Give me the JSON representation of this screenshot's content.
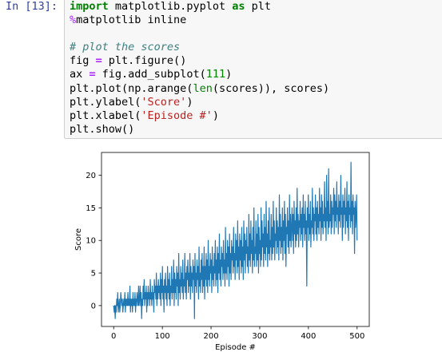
{
  "cell": {
    "prompt": "In [13]:",
    "lines": [
      [
        {
          "c": "kw",
          "t": "import"
        },
        {
          "c": "",
          "t": " matplotlib.pyplot "
        },
        {
          "c": "kw",
          "t": "as"
        },
        {
          "c": "",
          "t": " plt"
        }
      ],
      [
        {
          "c": "mg",
          "t": "%"
        },
        {
          "c": "",
          "t": "matplotlib inline"
        }
      ],
      [
        {
          "c": "",
          "t": ""
        }
      ],
      [
        {
          "c": "cm",
          "t": "# plot the scores"
        }
      ],
      [
        {
          "c": "",
          "t": "fig "
        },
        {
          "c": "op",
          "t": "="
        },
        {
          "c": "",
          "t": " plt.figure()"
        }
      ],
      [
        {
          "c": "",
          "t": "ax "
        },
        {
          "c": "op",
          "t": "="
        },
        {
          "c": "",
          "t": " fig.add_subplot("
        },
        {
          "c": "nm",
          "t": "111"
        },
        {
          "c": "",
          "t": ")"
        }
      ],
      [
        {
          "c": "",
          "t": "plt.plot(np.arange("
        },
        {
          "c": "bi",
          "t": "len"
        },
        {
          "c": "",
          "t": "(scores)), scores)"
        }
      ],
      [
        {
          "c": "",
          "t": "plt.ylabel("
        },
        {
          "c": "st",
          "t": "'Score'"
        },
        {
          "c": "",
          "t": ")"
        }
      ],
      [
        {
          "c": "",
          "t": "plt.xlabel("
        },
        {
          "c": "st",
          "t": "'Episode #'"
        },
        {
          "c": "",
          "t": ")"
        }
      ],
      [
        {
          "c": "",
          "t": "plt.show()"
        }
      ]
    ]
  },
  "chart_data": {
    "type": "line",
    "xlabel": "Episode #",
    "ylabel": "Score",
    "xlim": [
      -25,
      525
    ],
    "ylim": [
      -3.2,
      23.5
    ],
    "xticks": [
      0,
      100,
      200,
      300,
      400,
      500
    ],
    "yticks": [
      0,
      5,
      10,
      15,
      20
    ],
    "line_color": "#1f77b4",
    "series": [
      {
        "values": [
          0,
          -1,
          0,
          -2,
          0,
          -1,
          1,
          0,
          2,
          -1,
          0,
          1,
          -1,
          0,
          2,
          1,
          0,
          1,
          -1,
          0,
          1,
          0,
          2,
          -1,
          1,
          0,
          1,
          0,
          2,
          0,
          1,
          0,
          3,
          -1,
          1,
          0,
          1,
          -1,
          2,
          0,
          1,
          0,
          2,
          -1,
          1,
          0,
          2,
          1,
          0,
          3,
          0,
          1,
          3,
          0,
          2,
          -2,
          1,
          0,
          3,
          1,
          4,
          0,
          2,
          1,
          3,
          -1,
          2,
          0,
          3,
          1,
          2,
          0,
          4,
          1,
          2,
          0,
          3,
          1,
          2,
          -1,
          4,
          2,
          3,
          1,
          5,
          0,
          3,
          1,
          4,
          2,
          3,
          1,
          5,
          0,
          4,
          2,
          6,
          1,
          3,
          -1,
          4,
          2,
          5,
          1,
          3,
          0,
          6,
          2,
          4,
          1,
          5,
          0,
          3,
          2,
          6,
          1,
          4,
          2,
          7,
          0,
          5,
          2,
          4,
          1,
          6,
          3,
          5,
          0,
          8,
          2,
          4,
          1,
          6,
          3,
          5,
          2,
          7,
          1,
          4,
          3,
          8,
          2,
          5,
          1,
          6,
          4,
          7,
          2,
          5,
          3,
          8,
          1,
          6,
          3,
          5,
          2,
          7,
          4,
          6,
          -2,
          8,
          3,
          5,
          2,
          7,
          4,
          6,
          1,
          9,
          3,
          5,
          2,
          7,
          4,
          8,
          2,
          6,
          3,
          9,
          1,
          6,
          4,
          8,
          3,
          7,
          2,
          10,
          4,
          6,
          3,
          8,
          5,
          7,
          2,
          9,
          4,
          6,
          3,
          8,
          5,
          10,
          3,
          7,
          4,
          9,
          2,
          8,
          5,
          11,
          4,
          7,
          3,
          9,
          6,
          8,
          4,
          10,
          5,
          7,
          3,
          12,
          5,
          8,
          4,
          10,
          6,
          9,
          3,
          11,
          5,
          8,
          4,
          10,
          7,
          9,
          5,
          12,
          6,
          8,
          4,
          11,
          7,
          10,
          5,
          13,
          6,
          9,
          4,
          11,
          7,
          10,
          5,
          12,
          6,
          9,
          4,
          13,
          7,
          11,
          5,
          10,
          8,
          12,
          6,
          9,
          5,
          14,
          7,
          11,
          6,
          13,
          8,
          10,
          5,
          12,
          7,
          15,
          6,
          9,
          8,
          13,
          6,
          11,
          7,
          14,
          5,
          12,
          8,
          10,
          6,
          15,
          7,
          13,
          9,
          11,
          6,
          14,
          8,
          12,
          7,
          16,
          9,
          11,
          6,
          13,
          8,
          15,
          7,
          10,
          9,
          14,
          7,
          12,
          8,
          16,
          9,
          13,
          7,
          11,
          10,
          15,
          8,
          13,
          9,
          12,
          7,
          17,
          10,
          14,
          8,
          12,
          9,
          15,
          7,
          13,
          10,
          16,
          8,
          14,
          6,
          12,
          11,
          15,
          9,
          13,
          8,
          17,
          10,
          14,
          9,
          12,
          15,
          10,
          14,
          8,
          16,
          11,
          13,
          9,
          15,
          10,
          18,
          11,
          14,
          9,
          13,
          12,
          16,
          10,
          14,
          11,
          15,
          9,
          17,
          12,
          14,
          10,
          16,
          11,
          13,
          3,
          15,
          12,
          17,
          10,
          14,
          11,
          16,
          9,
          13,
          12,
          18,
          11,
          15,
          10,
          14,
          13,
          17,
          11,
          15,
          10,
          16,
          12,
          14,
          11,
          18,
          13,
          15,
          10,
          17,
          12,
          16,
          11,
          14,
          13,
          19,
          12,
          15,
          10,
          20,
          13,
          16,
          11,
          21,
          12,
          14,
          13,
          17,
          11,
          16,
          12,
          15,
          14,
          18,
          11,
          17,
          13,
          16,
          12,
          19,
          14,
          15,
          11,
          17,
          13,
          16,
          12,
          20,
          14,
          15,
          10,
          17,
          12,
          16,
          14,
          18,
          11,
          15,
          13,
          19,
          12,
          16,
          10,
          17,
          14,
          15,
          12,
          22,
          13,
          16,
          11,
          17,
          14,
          15,
          8,
          16,
          12,
          14,
          17,
          10
        ]
      }
    ]
  }
}
